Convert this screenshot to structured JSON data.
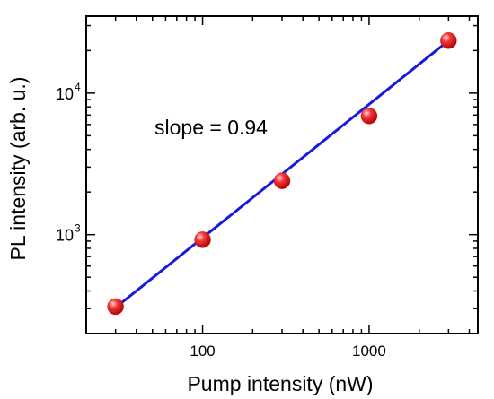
{
  "chart_data": {
    "type": "scatter",
    "title": "",
    "xlabel": "Pump intensity (nW)",
    "ylabel": "PL intensity (arb. u.)",
    "x_scale": "log",
    "y_scale": "log",
    "xlim": [
      20,
      4500
    ],
    "ylim": [
      200,
      35000
    ],
    "x_ticks": [
      {
        "value": 100,
        "label": "100"
      },
      {
        "value": 1000,
        "label": "1000"
      }
    ],
    "y_ticks": [
      {
        "value": 1000,
        "base": "10",
        "exp": "3"
      },
      {
        "value": 10000,
        "base": "10",
        "exp": "4"
      }
    ],
    "grid": false,
    "series": [
      {
        "type": "scatter",
        "marker_color": "#e8141c",
        "x": [
          30,
          100,
          300,
          1000,
          3000
        ],
        "y": [
          310,
          920,
          2400,
          6900,
          23500
        ]
      },
      {
        "type": "line",
        "fit": "power-law",
        "line_color": "#1a1adb",
        "x": [
          30,
          3000
        ],
        "y": [
          305,
          23500
        ]
      }
    ],
    "annotation": "slope = 0.94"
  }
}
